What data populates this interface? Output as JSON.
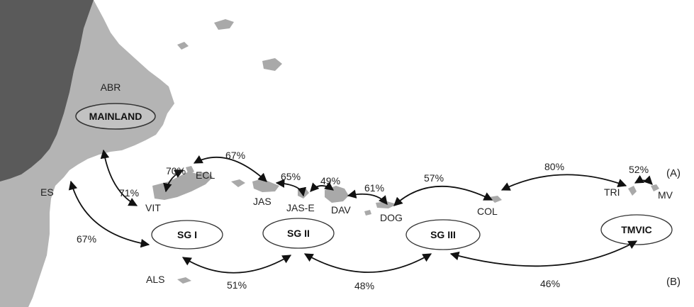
{
  "colors": {
    "land_dark": "#5a5a5a",
    "land_light": "#b4b4b4",
    "island": "#a9a9a9",
    "arrow": "#111111",
    "ellipse_fill": "#ffffff",
    "mainland_ellipse_fill": "#c2c2c2"
  },
  "regions": {
    "abr": "ABR",
    "mainland": "MAINLAND",
    "es": "ES"
  },
  "islands": {
    "vit": "VIT",
    "ecl": "ECL",
    "jas": "JAS",
    "jas_e": "JAS-E",
    "dav": "DAV",
    "dog": "DOG",
    "col": "COL",
    "tri": "TRI",
    "mv": "MV",
    "als": "ALS"
  },
  "groups": {
    "sg1": "SG I",
    "sg2": "SG II",
    "sg3": "SG III",
    "tmvic": "TMVIC"
  },
  "connections_a": [
    {
      "from": "ECL",
      "to": "JAS",
      "percent": "67%"
    },
    {
      "from": "VIT",
      "to": "ECL",
      "percent": "70%"
    },
    {
      "from": "MAINLAND",
      "to": "VIT",
      "percent": "71%"
    },
    {
      "from": "JAS",
      "to": "JAS-E",
      "percent": "65%"
    },
    {
      "from": "JAS-E",
      "to": "DAV",
      "percent": "49%"
    },
    {
      "from": "DAV",
      "to": "DOG",
      "percent": "61%"
    },
    {
      "from": "DOG",
      "to": "COL",
      "percent": "57%"
    },
    {
      "from": "COL",
      "to": "TRI",
      "percent": "80%"
    },
    {
      "from": "TRI",
      "to": "MV",
      "percent": "52%"
    }
  ],
  "connections_b": [
    {
      "from": "ES",
      "to": "SG I",
      "percent": "67%"
    },
    {
      "from": "SG I",
      "to": "SG II",
      "percent": "51%"
    },
    {
      "from": "SG II",
      "to": "SG III",
      "percent": "48%"
    },
    {
      "from": "SG III",
      "to": "TMVIC",
      "percent": "46%"
    }
  ],
  "panels": {
    "a": "(A)",
    "b": "(B)"
  }
}
